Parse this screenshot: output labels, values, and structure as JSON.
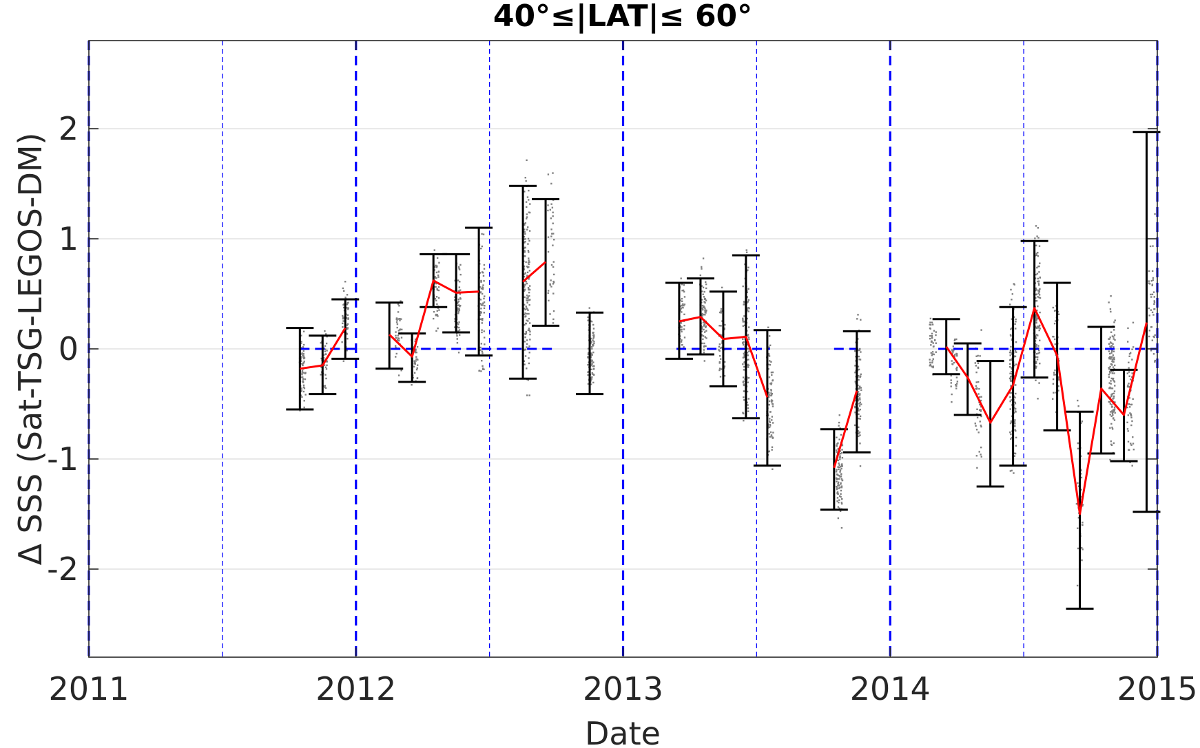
{
  "chart_data": {
    "type": "scatter",
    "title": "40°≤|LAT|≤ 60°",
    "xlabel": "Date",
    "ylabel": "Δ SSS (Sat-TSG-LEGOS-DM)",
    "xlim": [
      2011,
      2015
    ],
    "ylim": [
      -2.8,
      2.8
    ],
    "x_ticks": [
      2011,
      2012,
      2013,
      2014,
      2015
    ],
    "x_tick_labels": [
      "2011",
      "2012",
      "2013",
      "2014",
      "2015"
    ],
    "y_ticks": [
      -2,
      -1,
      0,
      1,
      2
    ],
    "y_tick_labels": [
      "-2",
      "-1",
      "0",
      "1",
      "2"
    ],
    "grid": "horizontal",
    "year_boundaries": [
      2011,
      2012,
      2013,
      2014,
      2015
    ],
    "half_year_markers": [
      2011.5,
      2012.5,
      2013.5,
      2014.5
    ],
    "zero_reference_segments": [
      {
        "x": [
          2011.79,
          2012.0
        ]
      },
      {
        "x": [
          2012.13,
          2012.75
        ]
      },
      {
        "x": [
          2013.2,
          2013.55
        ]
      },
      {
        "x": [
          2013.79,
          2013.88
        ]
      },
      {
        "x": [
          2014.18,
          2015.0
        ]
      }
    ],
    "error_bars": [
      {
        "x": 2011.79,
        "low": -0.55,
        "high": 0.19
      },
      {
        "x": 2011.875,
        "low": -0.41,
        "high": 0.12
      },
      {
        "x": 2011.96,
        "low": -0.09,
        "high": 0.45
      },
      {
        "x": 2012.125,
        "low": -0.18,
        "high": 0.42
      },
      {
        "x": 2012.21,
        "low": -0.3,
        "high": 0.14
      },
      {
        "x": 2012.29,
        "low": 0.38,
        "high": 0.86
      },
      {
        "x": 2012.375,
        "low": 0.15,
        "high": 0.86
      },
      {
        "x": 2012.46,
        "low": -0.06,
        "high": 1.1
      },
      {
        "x": 2012.625,
        "low": -0.27,
        "high": 1.48
      },
      {
        "x": 2012.71,
        "low": 0.21,
        "high": 1.36
      },
      {
        "x": 2012.875,
        "low": -0.41,
        "high": 0.33
      },
      {
        "x": 2013.21,
        "low": -0.09,
        "high": 0.6
      },
      {
        "x": 2013.29,
        "low": -0.05,
        "high": 0.64
      },
      {
        "x": 2013.375,
        "low": -0.34,
        "high": 0.52
      },
      {
        "x": 2013.46,
        "low": -0.63,
        "high": 0.85
      },
      {
        "x": 2013.54,
        "low": -1.06,
        "high": 0.17
      },
      {
        "x": 2013.79,
        "low": -1.46,
        "high": -0.73
      },
      {
        "x": 2013.875,
        "low": -0.94,
        "high": 0.16
      },
      {
        "x": 2014.21,
        "low": -0.23,
        "high": 0.27
      },
      {
        "x": 2014.29,
        "low": -0.6,
        "high": 0.05
      },
      {
        "x": 2014.375,
        "low": -1.25,
        "high": -0.11
      },
      {
        "x": 2014.46,
        "low": -1.06,
        "high": 0.38
      },
      {
        "x": 2014.54,
        "low": -0.26,
        "high": 0.98
      },
      {
        "x": 2014.625,
        "low": -0.74,
        "high": 0.6
      },
      {
        "x": 2014.71,
        "low": -2.36,
        "high": -0.57
      },
      {
        "x": 2014.79,
        "low": -0.95,
        "high": 0.2
      },
      {
        "x": 2014.875,
        "low": -1.02,
        "high": -0.19
      },
      {
        "x": 2014.96,
        "low": -1.48,
        "high": 1.97
      }
    ],
    "mean_line_segments": [
      {
        "points": [
          [
            2011.79,
            -0.18
          ],
          [
            2011.875,
            -0.15
          ],
          [
            2011.96,
            0.19
          ]
        ]
      },
      {
        "points": [
          [
            2012.125,
            0.13
          ],
          [
            2012.21,
            -0.07
          ],
          [
            2012.29,
            0.62
          ],
          [
            2012.375,
            0.51
          ],
          [
            2012.46,
            0.52
          ]
        ]
      },
      {
        "points": [
          [
            2012.625,
            0.61
          ],
          [
            2012.71,
            0.79
          ]
        ]
      },
      {
        "points": [
          [
            2013.21,
            0.25
          ],
          [
            2013.29,
            0.29
          ],
          [
            2013.375,
            0.09
          ],
          [
            2013.46,
            0.11
          ],
          [
            2013.54,
            -0.44
          ]
        ]
      },
      {
        "points": [
          [
            2013.79,
            -1.08
          ],
          [
            2013.875,
            -0.38
          ]
        ]
      },
      {
        "points": [
          [
            2014.21,
            0.02
          ],
          [
            2014.29,
            -0.26
          ],
          [
            2014.375,
            -0.67
          ],
          [
            2014.46,
            -0.33
          ],
          [
            2014.54,
            0.37
          ],
          [
            2014.625,
            -0.06
          ],
          [
            2014.71,
            -1.5
          ],
          [
            2014.79,
            -0.36
          ],
          [
            2014.875,
            -0.6
          ],
          [
            2014.96,
            0.24
          ]
        ]
      }
    ],
    "scatter_clusters": [
      {
        "x": 2011.8,
        "center": -0.2,
        "spread": 0.32,
        "count": 70
      },
      {
        "x": 2011.88,
        "center": -0.1,
        "spread": 0.25,
        "count": 50
      },
      {
        "x": 2011.96,
        "center": 0.25,
        "spread": 0.3,
        "count": 50
      },
      {
        "x": 2012.16,
        "center": 0.2,
        "spread": 0.35,
        "count": 40
      },
      {
        "x": 2012.22,
        "center": -0.1,
        "spread": 0.22,
        "count": 45
      },
      {
        "x": 2012.3,
        "center": 0.55,
        "spread": 0.3,
        "count": 60
      },
      {
        "x": 2012.38,
        "center": 0.4,
        "spread": 0.38,
        "count": 60
      },
      {
        "x": 2012.47,
        "center": 0.4,
        "spread": 0.55,
        "count": 80
      },
      {
        "x": 2012.64,
        "center": 0.55,
        "spread": 0.9,
        "count": 150
      },
      {
        "x": 2012.73,
        "center": 0.8,
        "spread": 0.7,
        "count": 40
      },
      {
        "x": 2012.88,
        "center": -0.05,
        "spread": 0.38,
        "count": 110
      },
      {
        "x": 2013.22,
        "center": 0.3,
        "spread": 0.35,
        "count": 60
      },
      {
        "x": 2013.3,
        "center": 0.3,
        "spread": 0.4,
        "count": 90
      },
      {
        "x": 2013.37,
        "center": 0.05,
        "spread": 0.4,
        "count": 40
      },
      {
        "x": 2013.46,
        "center": 0.1,
        "spread": 0.7,
        "count": 120
      },
      {
        "x": 2013.55,
        "center": -0.45,
        "spread": 0.6,
        "count": 90
      },
      {
        "x": 2013.81,
        "center": -1.1,
        "spread": 0.45,
        "count": 110
      },
      {
        "x": 2013.88,
        "center": -0.35,
        "spread": 0.55,
        "count": 90
      },
      {
        "x": 2014.16,
        "center": 0.05,
        "spread": 0.3,
        "count": 45
      },
      {
        "x": 2014.24,
        "center": -0.15,
        "spread": 0.3,
        "count": 40
      },
      {
        "x": 2014.33,
        "center": -0.5,
        "spread": 0.55,
        "count": 50
      },
      {
        "x": 2014.46,
        "center": -0.3,
        "spread": 0.75,
        "count": 130
      },
      {
        "x": 2014.55,
        "center": 0.4,
        "spread": 0.65,
        "count": 130
      },
      {
        "x": 2014.62,
        "center": 0.0,
        "spread": 0.5,
        "count": 40
      },
      {
        "x": 2014.71,
        "center": -1.3,
        "spread": 0.8,
        "count": 40
      },
      {
        "x": 2014.83,
        "center": -0.3,
        "spread": 0.6,
        "count": 130
      },
      {
        "x": 2014.9,
        "center": -0.5,
        "spread": 0.6,
        "count": 60
      },
      {
        "x": 2014.98,
        "center": 0.4,
        "spread": 0.7,
        "count": 40
      }
    ],
    "colors": {
      "axes": "#262626",
      "grid": "#dcdcdc",
      "year_line": "#0000ff",
      "zero_line": "#0000ff",
      "error_bar": "#000000",
      "mean_line": "#ff0000",
      "scatter": "#808080"
    }
  }
}
